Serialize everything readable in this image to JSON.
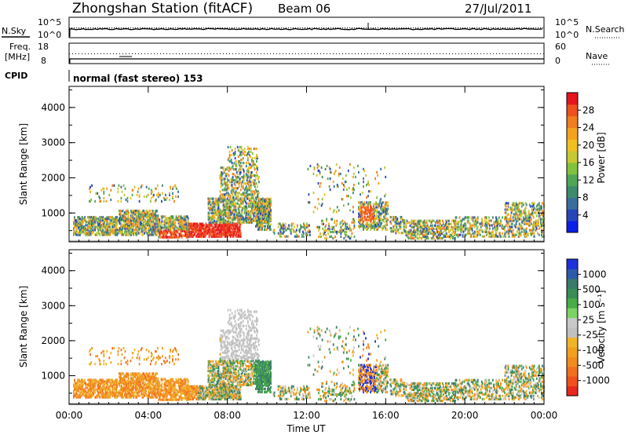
{
  "header": {
    "station": "Zhongshan Station (fitACF)",
    "beam": "Beam 06",
    "date": "27/Jul/2011"
  },
  "top_panels": {
    "nsky_label": "N.Sky",
    "nsearch_label": "N.Search",
    "scale_high": "10^5",
    "scale_low": "10^0",
    "freq_label_1": "Freq.",
    "freq_label_2": "[MHz]",
    "freq_high": "18",
    "freq_low": "8",
    "nave_label": "Nave",
    "nave_high": "60",
    "nave_low": "0",
    "cpid_label": "CPID",
    "cpid_text": "normal (fast stereo) 153"
  },
  "chart_data": [
    {
      "type": "heatmap",
      "name": "power",
      "ylabel": "Slant Range [km]",
      "xlabel": "Time UT",
      "y_ticks": [
        "1000",
        "2000",
        "3000",
        "4000"
      ],
      "x_ticks": [
        "00:00",
        "04:00",
        "08:00",
        "12:00",
        "16:00",
        "20:00",
        "00:00"
      ],
      "ylim": [
        180,
        4600
      ],
      "xlim_hours": [
        0,
        24
      ],
      "colorbar": {
        "title": "Power [dB]",
        "ticks": [
          "4",
          "8",
          "12",
          "16",
          "20",
          "24",
          "28"
        ],
        "colors": [
          "#0a1ee6",
          "#2946b8",
          "#3c6e9c",
          "#3f8a6e",
          "#52a456",
          "#82c13e",
          "#c6c832",
          "#f0c020",
          "#f4a21e",
          "#f07d1e",
          "#f0501e",
          "#e6141e"
        ]
      }
    },
    {
      "type": "heatmap",
      "name": "velocity",
      "ylabel": "Slant Range [km]",
      "xlabel": "Time UT",
      "y_ticks": [
        "1000",
        "2000",
        "3000",
        "4000"
      ],
      "x_ticks": [
        "00:00",
        "04:00",
        "08:00",
        "12:00",
        "16:00",
        "20:00",
        "00:00"
      ],
      "ylim": [
        180,
        4600
      ],
      "xlim_hours": [
        0,
        24
      ],
      "colorbar": {
        "title": "Velocity [m s⁻¹]",
        "ticks": [
          "1000",
          "500",
          "100",
          "25",
          "-25",
          "-100",
          "-500",
          "-1000"
        ],
        "colors": [
          "#1e32dc",
          "#2f5aa8",
          "#3a7a6a",
          "#3c8c58",
          "#48ac48",
          "#7cd264",
          "#c8c8c8",
          "#c0c0c0",
          "#f0b428",
          "#f0a01e",
          "#f08c1e",
          "#f07020",
          "#f0501e",
          "#e6281e"
        ]
      }
    }
  ]
}
